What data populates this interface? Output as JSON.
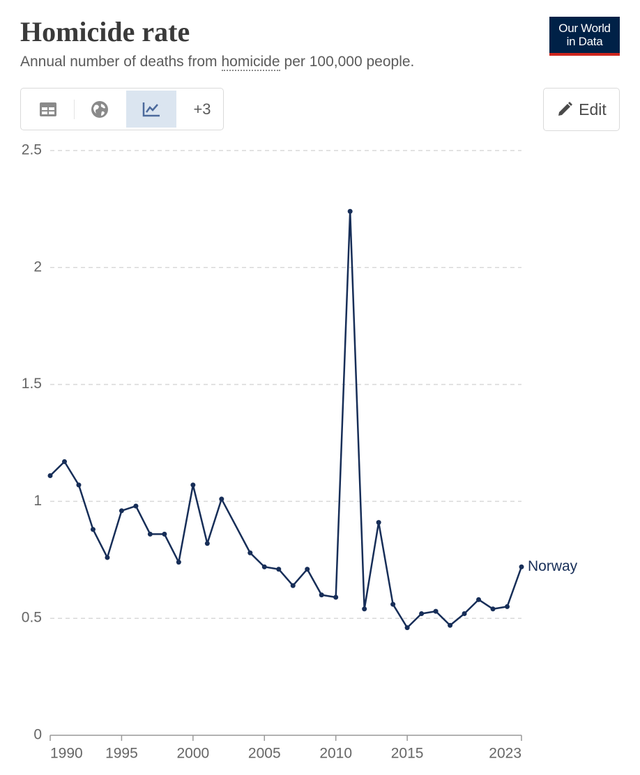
{
  "header": {
    "title": "Homicide rate",
    "subtitle": [
      "Annual number of deaths from",
      "homicide",
      "per 100,000 people."
    ]
  },
  "logo": [
    "Our World",
    "in Data"
  ],
  "controls": {
    "more": "+3",
    "edit": "Edit"
  },
  "chart_data": {
    "type": "line",
    "x": [
      1990,
      1991,
      1992,
      1993,
      1994,
      1995,
      1996,
      1997,
      1998,
      1999,
      2000,
      2001,
      2002,
      2004,
      2005,
      2006,
      2007,
      2008,
      2009,
      2010,
      2011,
      2012,
      2013,
      2014,
      2015,
      2016,
      2017,
      2018,
      2019,
      2020,
      2021,
      2022,
      2023
    ],
    "series": [
      {
        "name": "Norway",
        "color": "#172e58",
        "values": [
          1.11,
          1.17,
          1.07,
          0.88,
          0.76,
          0.96,
          0.98,
          0.86,
          0.86,
          0.74,
          1.07,
          0.82,
          1.01,
          0.78,
          0.72,
          0.71,
          0.64,
          0.71,
          0.6,
          0.59,
          2.24,
          0.54,
          0.91,
          0.56,
          0.46,
          0.52,
          0.53,
          0.47,
          0.52,
          0.58,
          0.54,
          0.55,
          0.72
        ]
      }
    ],
    "xlim": [
      1990,
      2023
    ],
    "xticks": [
      1990,
      1995,
      2000,
      2005,
      2010,
      2015,
      2023
    ],
    "ylim": [
      0,
      2.5
    ],
    "yticks": [
      0,
      0.5,
      1,
      1.5,
      2,
      2.5
    ],
    "grid": true
  }
}
